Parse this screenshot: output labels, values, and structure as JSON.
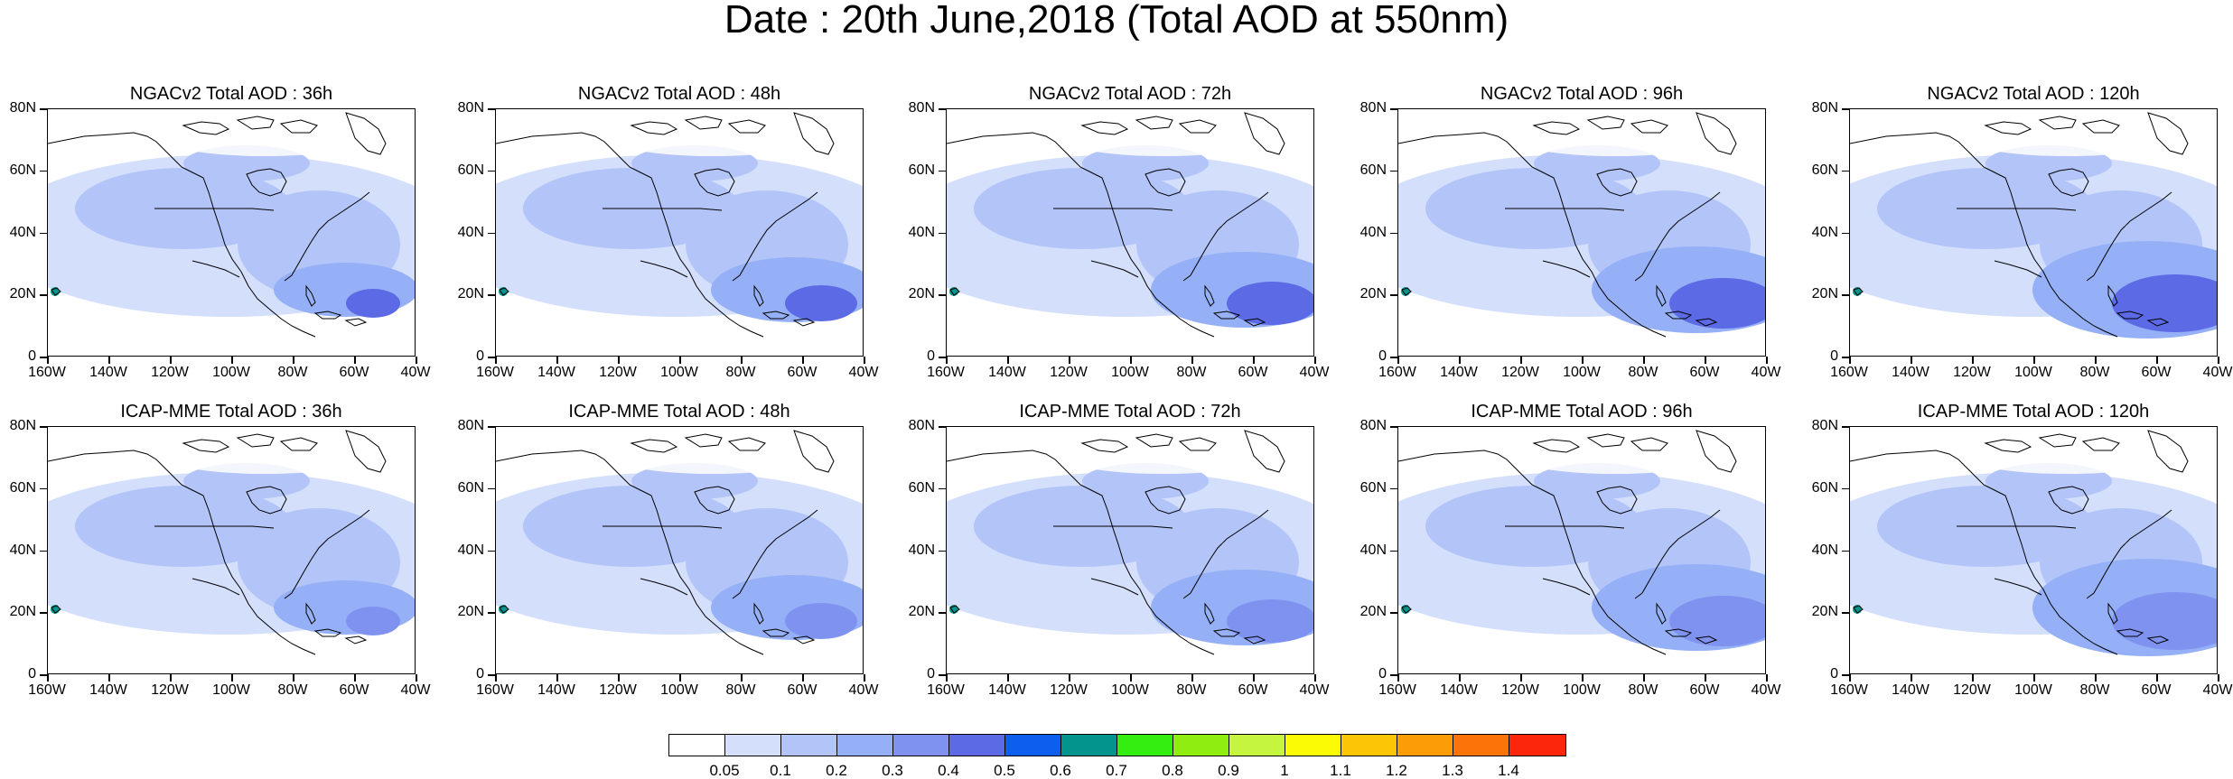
{
  "title": "Date : 20th June,2018 (Total AOD at 550nm)",
  "rows": [
    {
      "model": "NGACv2",
      "panels": [
        {
          "title": "NGACv2 Total AOD : 36h",
          "lead": "36h"
        },
        {
          "title": "NGACv2 Total AOD : 48h",
          "lead": "48h"
        },
        {
          "title": "NGACv2 Total AOD : 72h",
          "lead": "72h"
        },
        {
          "title": "NGACv2 Total AOD : 96h",
          "lead": "96h"
        },
        {
          "title": "NGACv2 Total AOD : 120h",
          "lead": "120h"
        }
      ]
    },
    {
      "model": "ICAP-MME",
      "panels": [
        {
          "title": "ICAP-MME Total AOD : 36h",
          "lead": "36h"
        },
        {
          "title": "ICAP-MME Total AOD : 48h",
          "lead": "48h"
        },
        {
          "title": "ICAP-MME Total AOD : 72h",
          "lead": "72h"
        },
        {
          "title": "ICAP-MME Total AOD : 96h",
          "lead": "96h"
        },
        {
          "title": "ICAP-MME Total AOD : 120h",
          "lead": "120h"
        }
      ]
    }
  ],
  "y_ticks": [
    "80N",
    "60N",
    "40N",
    "20N",
    "0"
  ],
  "x_ticks": [
    "160W",
    "140W",
    "120W",
    "100W",
    "80W",
    "60W",
    "40W"
  ],
  "colorbar": {
    "colors": [
      "#ffffff",
      "#d4dffc",
      "#b2c4f8",
      "#95b0f6",
      "#7f92f0",
      "#5c6ae6",
      "#0d5eed",
      "#03958d",
      "#33ee10",
      "#8fee10",
      "#c6f53f",
      "#fbfb06",
      "#fcc506",
      "#fc9d07",
      "#fc7308",
      "#fc260d"
    ],
    "labels": [
      "0.05",
      "0.1",
      "0.2",
      "0.3",
      "0.4",
      "0.5",
      "0.6",
      "0.7",
      "0.8",
      "0.9",
      "1",
      "1.1",
      "1.2",
      "1.3",
      "1.4"
    ]
  }
}
